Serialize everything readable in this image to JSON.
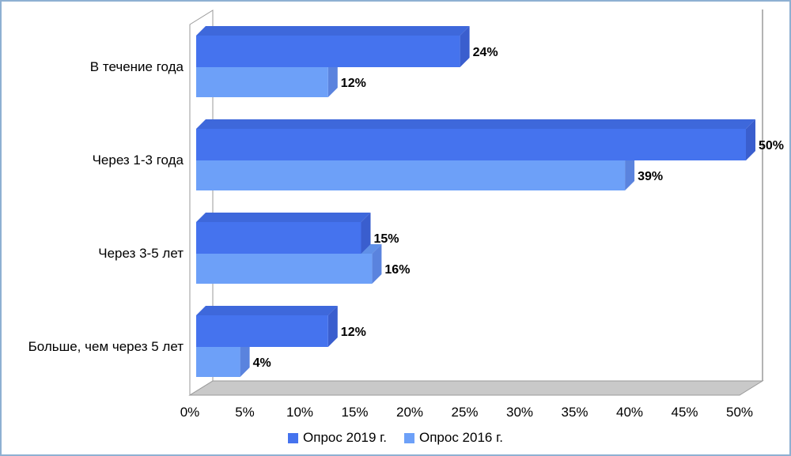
{
  "window": {
    "background": "#FFFFFF",
    "border_color": "#8EB0D2"
  },
  "chart_data": {
    "type": "bar",
    "orientation": "horizontal",
    "style": "3d",
    "title": "",
    "categories": [
      "В течение года",
      "Через 1-3 года",
      "Через 3-5 лет",
      "Больше, чем через 5 лет"
    ],
    "series": [
      {
        "name": "Опрос 2019 г.",
        "values": [
          24,
          50,
          15,
          12
        ],
        "labels": [
          "24%",
          "50%",
          "15%",
          "12%"
        ],
        "color_front": "#4573EE",
        "color_top": "#3E68DB",
        "color_side": "#3A5ECE"
      },
      {
        "name": "Опрос 2016 г.",
        "values": [
          12,
          39,
          16,
          4
        ],
        "labels": [
          "12%",
          "39%",
          "16%",
          "4%"
        ],
        "color_front": "#6DA0F8",
        "color_top": "#6090E8",
        "color_side": "#5A83DE"
      }
    ],
    "x_axis": {
      "min": 0,
      "max": 50,
      "step": 5,
      "ticks": [
        "0%",
        "5%",
        "10%",
        "15%",
        "20%",
        "25%",
        "30%",
        "35%",
        "40%",
        "45%",
        "50%"
      ]
    },
    "gridlines": false,
    "legend_position": "bottom",
    "floor_color": "#C9C9C9",
    "wall_fill": "#FFFFFF",
    "wall_line_color": "#9A9A9A",
    "data_label_color": "#000000",
    "text_color": "#000000"
  }
}
